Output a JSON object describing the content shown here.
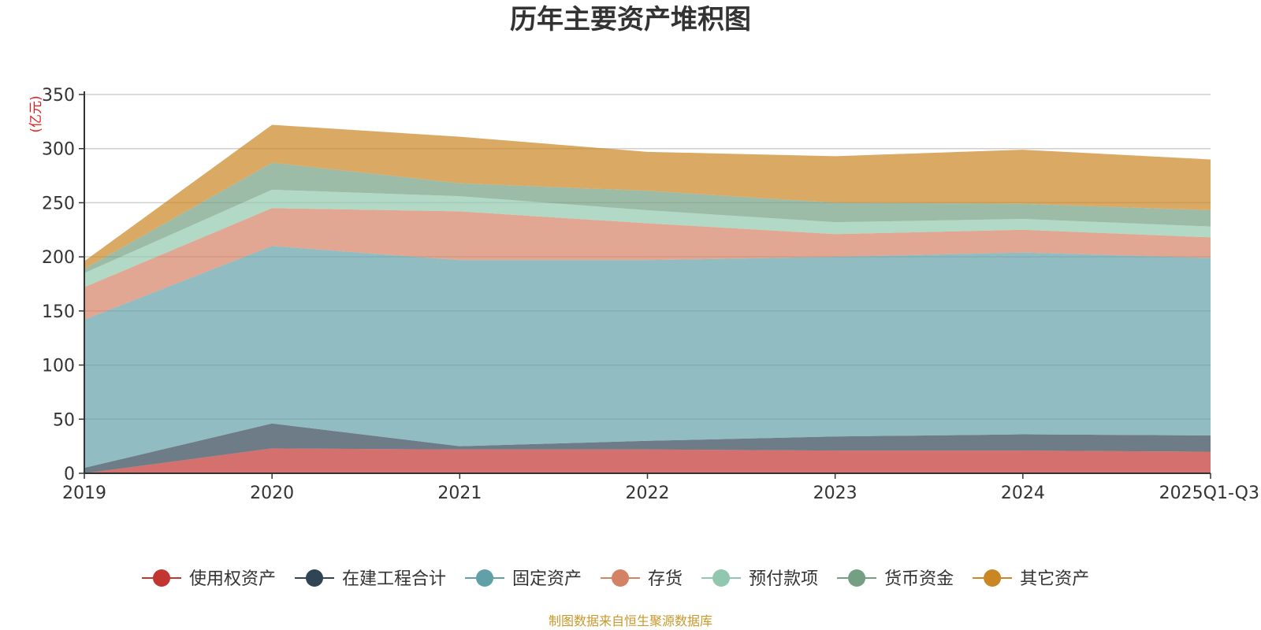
{
  "chart_data": {
    "type": "area",
    "stacked": true,
    "title": "历年主要资产堆积图",
    "ylabel": "(亿元)",
    "xlabel": "",
    "ylim": [
      0,
      350
    ],
    "yticks": [
      "0",
      "50",
      "100",
      "150",
      "200",
      "250",
      "300",
      "350"
    ],
    "categories": [
      "2019",
      "2020",
      "2021",
      "2022",
      "2023",
      "2024",
      "2025Q1-Q3"
    ],
    "grid": true,
    "legend_position": "bottom",
    "series": [
      {
        "name": "使用权资产",
        "color": "#c23531",
        "values": [
          0,
          23,
          22,
          22,
          21,
          21,
          20
        ]
      },
      {
        "name": "在建工程合计",
        "color": "#2f4554",
        "values": [
          5,
          23,
          3,
          8,
          13,
          15,
          15
        ]
      },
      {
        "name": "固定资产",
        "color": "#61a0a8",
        "values": [
          137,
          164,
          172,
          167,
          166,
          168,
          164
        ]
      },
      {
        "name": "存货",
        "color": "#d48265",
        "values": [
          30,
          35,
          45,
          34,
          21,
          21,
          19
        ]
      },
      {
        "name": "预付款项",
        "color": "#91c7ae",
        "values": [
          13,
          17,
          14,
          12,
          11,
          10,
          10
        ]
      },
      {
        "name": "货币资金",
        "color": "#749f83",
        "values": [
          4,
          25,
          12,
          18,
          18,
          14,
          15
        ]
      },
      {
        "name": "其它资产",
        "color": "#ca8622",
        "values": [
          7,
          35,
          43,
          36,
          43,
          50,
          47
        ]
      }
    ]
  },
  "footnote": "制图数据来自恒生聚源数据库"
}
